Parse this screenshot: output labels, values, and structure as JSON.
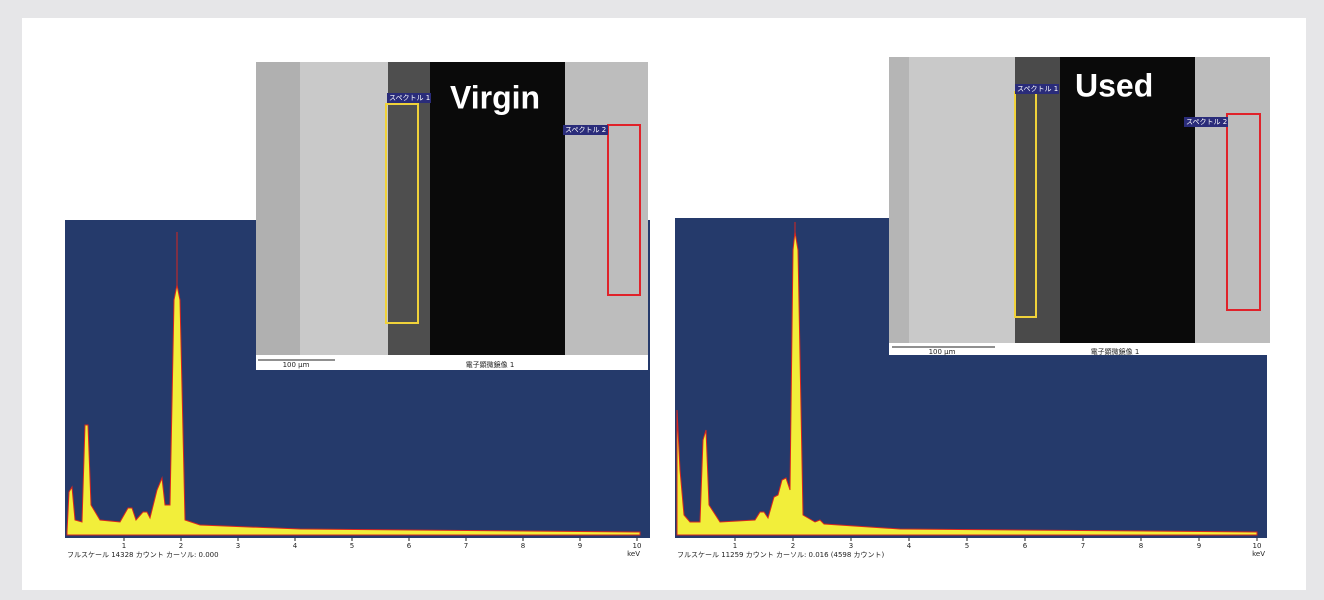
{
  "panels": [
    {
      "label": "Virgin",
      "spectrum_labels": [
        "スペクトル 1",
        "スペクトル 2"
      ],
      "scale_bar": "100 μm",
      "image_caption": "電子顕微鏡像 1",
      "xticks": [
        1,
        2,
        3,
        4,
        5,
        6,
        7,
        8,
        9,
        10
      ],
      "x_unit": "keV",
      "footer": "フルスケール 14328 カウント カーソル: 0.000"
    },
    {
      "label": "Used",
      "spectrum_labels": [
        "スペクトル 1",
        "スペクトル 2"
      ],
      "scale_bar": "100 μm",
      "image_caption": "電子顕微鏡像 1",
      "xticks": [
        1,
        2,
        3,
        4,
        5,
        6,
        7,
        8,
        9,
        10
      ],
      "x_unit": "keV",
      "footer": "フルスケール 11259 カウント カーソル: 0.016 (4598 カウント)"
    }
  ]
}
